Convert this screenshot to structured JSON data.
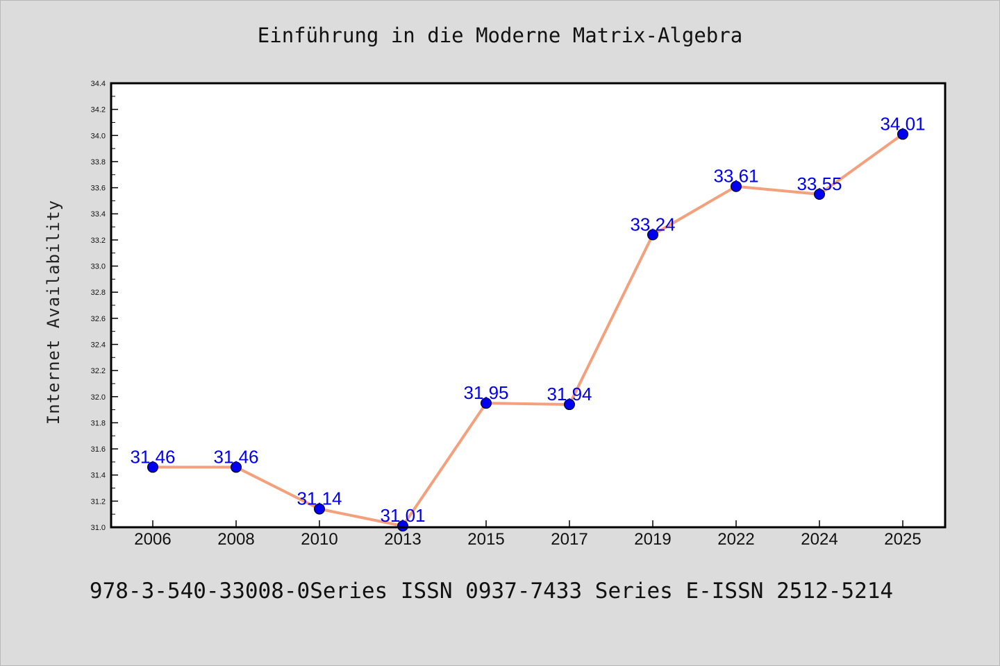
{
  "chart_data": {
    "type": "line",
    "title": "Einführung in die Moderne Matrix-Algebra",
    "xlabel": "",
    "ylabel": "Internet Availability",
    "categories": [
      "2006",
      "2008",
      "2010",
      "2013",
      "2015",
      "2017",
      "2019",
      "2022",
      "2024",
      "2025"
    ],
    "series": [
      {
        "values": [
          31.46,
          31.46,
          31.14,
          31.01,
          31.95,
          31.94,
          33.24,
          33.61,
          33.55,
          34.01
        ],
        "data_labels": [
          "31.46",
          "31.46",
          "31.14",
          "31.01",
          "31.95",
          "31.94",
          "33.24",
          "33.61",
          "33.55",
          "34.01"
        ]
      }
    ],
    "ylim": [
      31.0,
      34.4
    ],
    "yticks": [
      "31.0",
      "31.2",
      "31.4",
      "31.6",
      "31.8",
      "32.0",
      "32.2",
      "32.4",
      "32.6",
      "32.8",
      "33.0",
      "33.2",
      "33.4",
      "33.6",
      "33.8",
      "34.0",
      "34.2",
      "34.4"
    ],
    "grid": false,
    "colors": {
      "line": "#f4a07c",
      "marker": "#0000ee",
      "data_label": "#0000ee",
      "axes": "#000000",
      "background": "#dcdcdc",
      "plot_background": "#ffffff"
    }
  },
  "footer": {
    "text": "978-3-540-33008-0Series ISSN 0937-7433 Series E-ISSN 2512-5214"
  }
}
